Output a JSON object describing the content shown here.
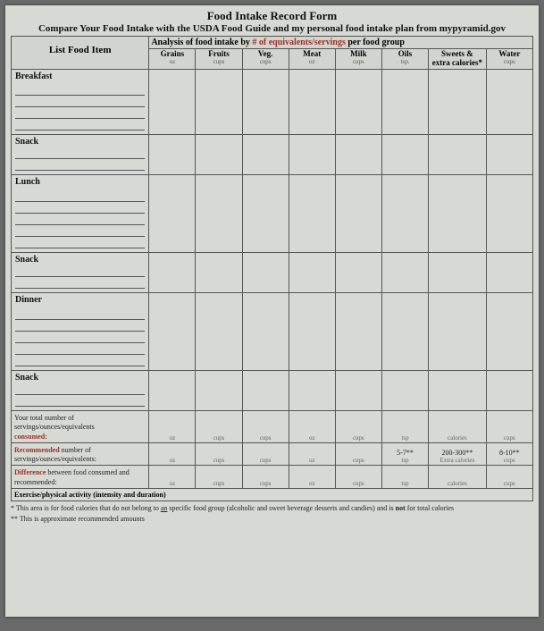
{
  "title": "Food Intake Record Form",
  "subtitle": "Compare Your Food Intake with the USDA Food Guide and my personal food intake plan from mypyramid.gov",
  "analysis_header_prefix": "Analysis of food intake by ",
  "analysis_header_red": "# of equivalents/servings",
  "analysis_header_suffix": " per food group",
  "list_col": "List Food Item",
  "cols": [
    {
      "name": "Grains",
      "unit": "oz"
    },
    {
      "name": "Fruits",
      "unit": "cups"
    },
    {
      "name": "Veg.",
      "unit": "cups"
    },
    {
      "name": "Meat",
      "unit": "oz"
    },
    {
      "name": "Milk",
      "unit": "cups"
    },
    {
      "name": "Oils",
      "unit": "tsp."
    },
    {
      "name": "Sweets & extra calories*",
      "unit": ""
    },
    {
      "name": "Water",
      "unit": "cups"
    }
  ],
  "meals": [
    {
      "label": "Breakfast",
      "lines": 4
    },
    {
      "label": "Snack",
      "lines": 2
    },
    {
      "label": "Lunch",
      "lines": 5
    },
    {
      "label": "Snack",
      "lines": 2
    },
    {
      "label": "Dinner",
      "lines": 5
    },
    {
      "label": "Snack",
      "lines": 2
    }
  ],
  "summary": {
    "total": {
      "label_plain": "Your total number of servings/ounces/equivalents ",
      "label_red": "consumed:",
      "units": [
        "oz",
        "cups",
        "cups",
        "oz",
        "cups",
        "tsp",
        "calories",
        "cups"
      ],
      "values": [
        "",
        "",
        "",
        "",
        "",
        "",
        "",
        ""
      ]
    },
    "recommended": {
      "label_red": "Recommended",
      "label_plain": " number of servings/ounces/equivalents:",
      "units": [
        "oz",
        "cups",
        "cups",
        "oz",
        "cups",
        "tsp",
        "Extra calories",
        "cups"
      ],
      "values": [
        "",
        "",
        "",
        "",
        "",
        "5-7**",
        "200-300**",
        "8-10**"
      ]
    },
    "difference": {
      "label_red": "Difference",
      "label_plain": " between food consumed and recommended:",
      "units": [
        "oz",
        "cups",
        "cups",
        "oz",
        "cups",
        "tsp",
        "calories",
        "cups"
      ],
      "values": [
        "",
        "",
        "",
        "",
        "",
        "",
        "",
        ""
      ]
    }
  },
  "exercise_row": "Exercise/physical activity (intensity and duration)",
  "footnote1": "* This area is for food calories that do not belong to an specific food group (alcoholic and sweet beverage desserts and candies) and is not for total calories",
  "footnote2": "** This is approximate recommended amounts",
  "not_word": "not"
}
